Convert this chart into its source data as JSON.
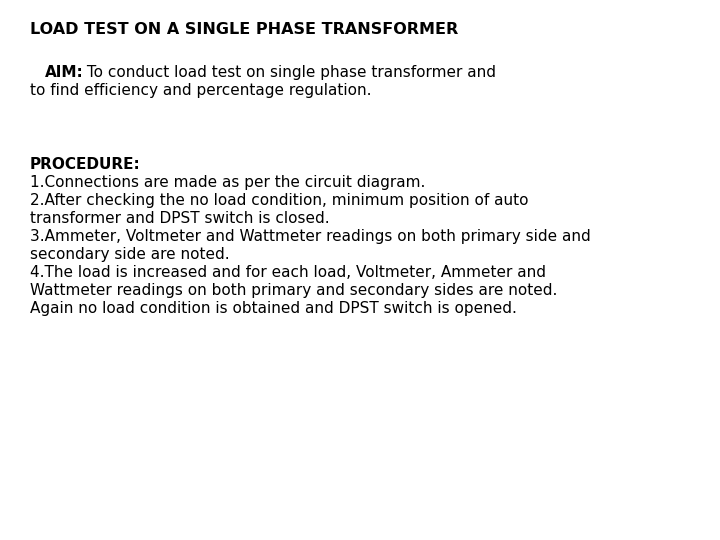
{
  "background_color": "#ffffff",
  "text_color": "#000000",
  "title": "LOAD TEST ON A SINGLE PHASE TRANSFORMER",
  "title_fontsize": 11.5,
  "aim_label": "AIM:",
  "aim_rest": " To conduct load test on single phase transformer and\nto find efficiency and percentage regulation.",
  "aim_fontsize": 11.0,
  "procedure_label": "PROCEDURE:",
  "procedure_fontsize": 11.0,
  "procedure_lines": [
    "1.Connections are made as per the circuit diagram.",
    "2.After checking the no load condition, minimum position of auto",
    "transformer and DPST switch is closed.",
    "3.Ammeter, Voltmeter and Wattmeter readings on both primary side and",
    "secondary side are noted.",
    "4.The load is increased and for each load, Voltmeter, Ammeter and",
    "Wattmeter readings on both primary and secondary sides are noted.",
    "Again no load condition is obtained and DPST switch is opened."
  ]
}
